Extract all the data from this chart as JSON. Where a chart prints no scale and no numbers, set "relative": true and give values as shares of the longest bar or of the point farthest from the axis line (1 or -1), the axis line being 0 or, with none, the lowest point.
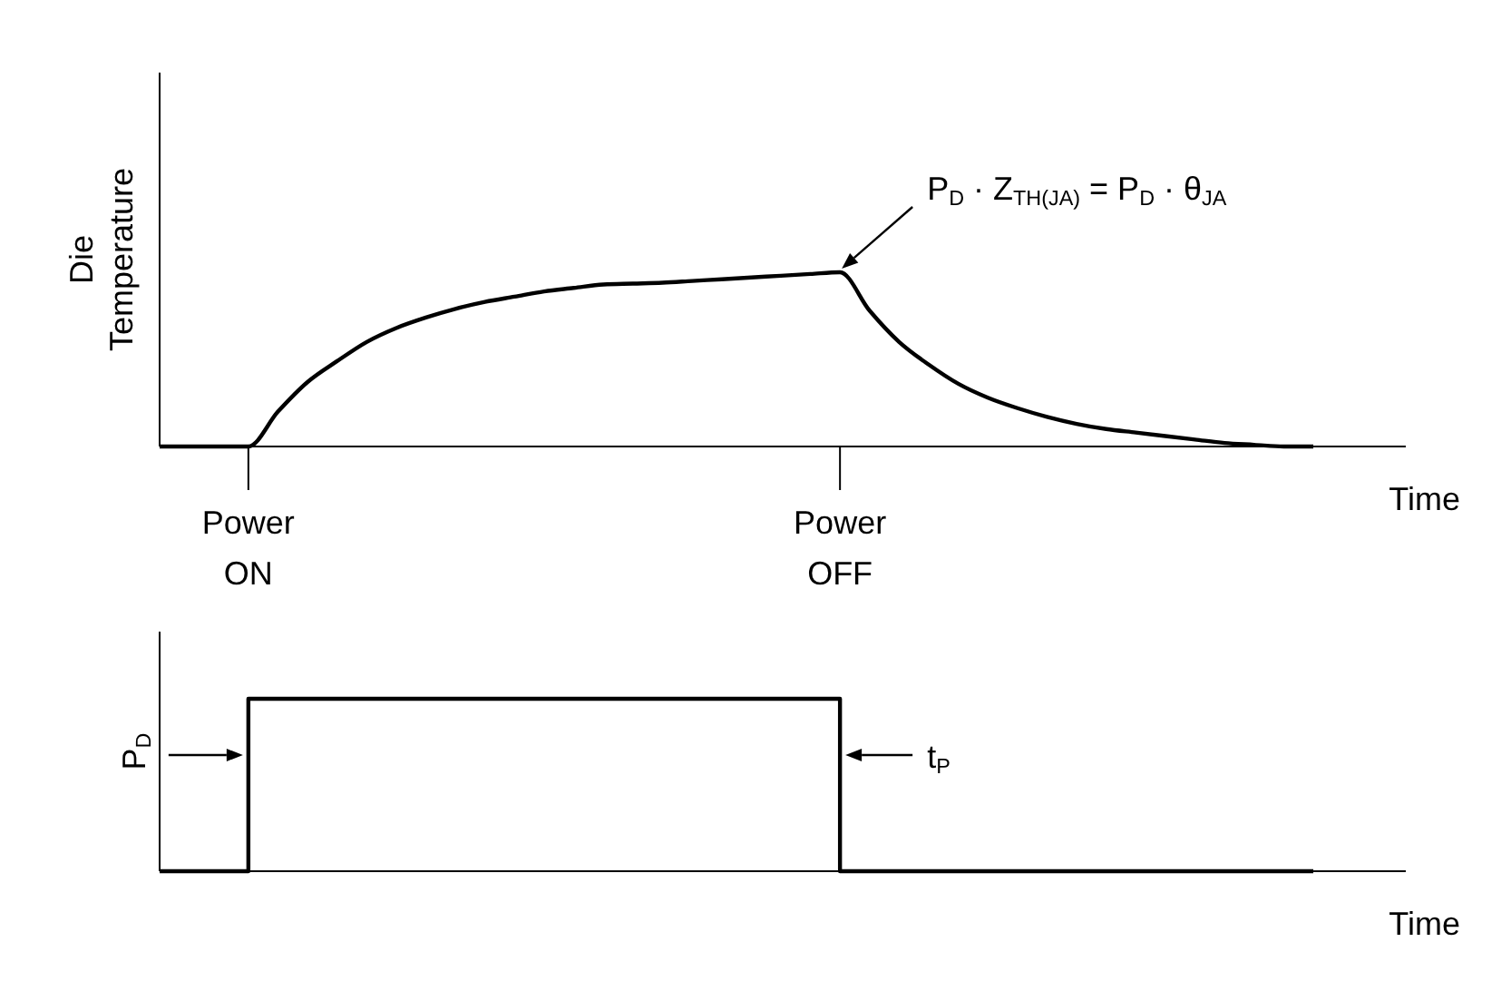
{
  "chart_data": [
    {
      "type": "line",
      "relative": true,
      "ylabel": "Die Temperature",
      "xlabel": "Time",
      "categories": [
        null,
        null,
        null,
        "Power ON",
        null,
        null,
        null,
        null,
        null,
        null,
        null,
        null,
        null,
        null,
        null,
        null,
        null,
        null,
        null,
        null,
        null,
        null,
        null,
        "Power OFF",
        null,
        null,
        null,
        null,
        null,
        null,
        null,
        null,
        null,
        null,
        null,
        null,
        null,
        null,
        null,
        null
      ],
      "series": [
        {
          "color": "#000000",
          "values": [
            0,
            0,
            0,
            0,
            0.2,
            0.37,
            0.49,
            0.6,
            0.68,
            0.74,
            0.79,
            0.83,
            0.86,
            0.89,
            0.91,
            0.93,
            0.935,
            0.94,
            0.95,
            0.96,
            0.97,
            0.98,
            0.99,
            1,
            0.78,
            0.6,
            0.47,
            0.36,
            0.28,
            0.22,
            0.17,
            0.13,
            0.1,
            0.08,
            0.06,
            0.04,
            0.02,
            0.01,
            0,
            0
          ]
        }
      ],
      "annotations": [
        "P$_{D}$ · Z$_{TH(JA)}$ = P$_{D}$ · θ$_{JA}$"
      ]
    },
    {
      "type": "step",
      "relative": true,
      "ylabel": "P$_{D}$",
      "xlabel": "Time",
      "categories": [
        null,
        null,
        null,
        null,
        null,
        null,
        null,
        null,
        null,
        null,
        null,
        null,
        null,
        null,
        null,
        null,
        null,
        null,
        null,
        null,
        null,
        null,
        null,
        null,
        null,
        null,
        null,
        null,
        null,
        null,
        null,
        null,
        null,
        null,
        null,
        null,
        null,
        null,
        null,
        null
      ],
      "series": [
        {
          "color": "#000000",
          "values": [
            0,
            0,
            0,
            1,
            1,
            1,
            1,
            1,
            1,
            1,
            1,
            1,
            1,
            1,
            1,
            1,
            1,
            1,
            1,
            1,
            1,
            1,
            1,
            0,
            0,
            0,
            0,
            0,
            0,
            0,
            0,
            0,
            0,
            0,
            0,
            0,
            0,
            0,
            0,
            0
          ]
        }
      ],
      "annotations": [
        "t$_{P}$"
      ]
    }
  ]
}
